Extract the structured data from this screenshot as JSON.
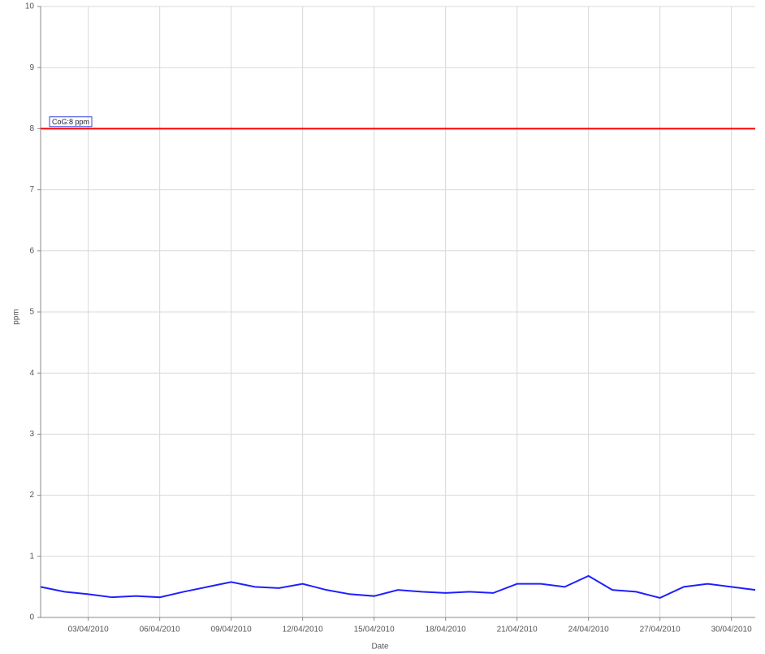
{
  "chart_data": {
    "type": "line",
    "x_label": "Date",
    "y_label": "ppm",
    "x": [
      "01/04/2010",
      "02/04/2010",
      "03/04/2010",
      "04/04/2010",
      "05/04/2010",
      "06/04/2010",
      "07/04/2010",
      "08/04/2010",
      "09/04/2010",
      "10/04/2010",
      "11/04/2010",
      "12/04/2010",
      "13/04/2010",
      "14/04/2010",
      "15/04/2010",
      "16/04/2010",
      "17/04/2010",
      "18/04/2010",
      "19/04/2010",
      "20/04/2010",
      "21/04/2010",
      "22/04/2010",
      "23/04/2010",
      "24/04/2010",
      "25/04/2010",
      "26/04/2010",
      "27/04/2010",
      "28/04/2010",
      "29/04/2010",
      "30/04/2010",
      "01/05/2010"
    ],
    "series": [
      {
        "color": "#1f1fff",
        "values": [
          0.5,
          0.42,
          0.38,
          0.33,
          0.35,
          0.33,
          0.42,
          0.5,
          0.58,
          0.5,
          0.48,
          0.55,
          0.45,
          0.38,
          0.35,
          0.45,
          0.42,
          0.4,
          0.42,
          0.4,
          0.55,
          0.55,
          0.5,
          0.68,
          0.45,
          0.42,
          0.32,
          0.5,
          0.55,
          0.5,
          0.45
        ]
      }
    ],
    "threshold": {
      "value": 8,
      "label": "CoG:8 ppm",
      "color": "#ff0000"
    },
    "xlim": [
      "01/04/2010",
      "01/05/2010"
    ],
    "xticks": [
      "03/04/2010",
      "06/04/2010",
      "09/04/2010",
      "12/04/2010",
      "15/04/2010",
      "18/04/2010",
      "21/04/2010",
      "24/04/2010",
      "27/04/2010",
      "30/04/2010"
    ],
    "ylim": [
      0,
      10
    ],
    "yticks": [
      0,
      1,
      2,
      3,
      4,
      5,
      6,
      7,
      8,
      9,
      10
    ],
    "grid": true
  }
}
